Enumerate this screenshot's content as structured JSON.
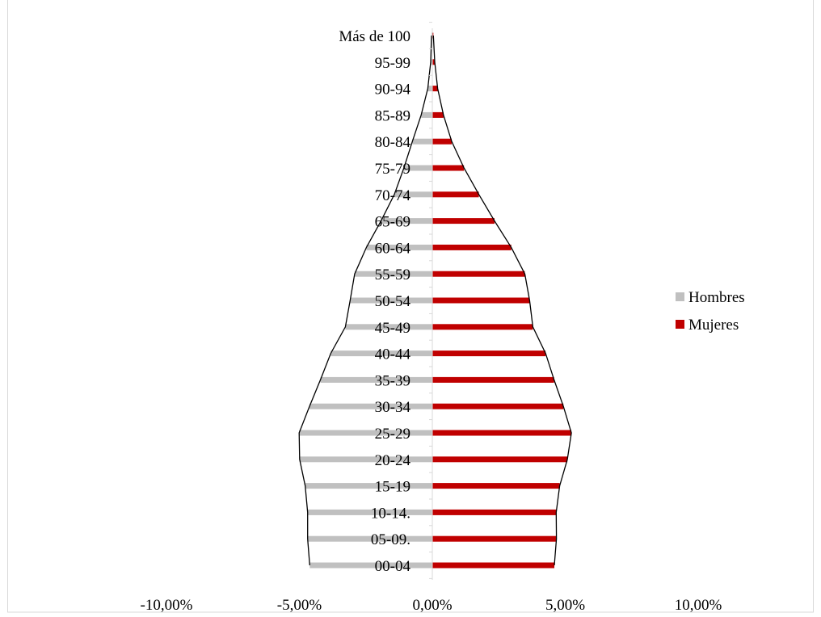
{
  "chart_data": {
    "type": "bar",
    "orientation": "horizontal",
    "title": "",
    "xlabel": "",
    "ylabel": "",
    "xlim": [
      -0.1,
      0.1
    ],
    "x_ticks": [
      -0.1,
      -0.05,
      0,
      0.05,
      0.1
    ],
    "x_tick_labels": [
      "-10,00%",
      "-5,00%",
      "0,00%",
      "5,00%",
      "10,00%"
    ],
    "grid": false,
    "legend_position": "right",
    "categories": [
      "Más de 100",
      "95-99",
      "90-94",
      "85-89",
      "80-84",
      "75-79",
      "70-74",
      "65-69",
      "60-64",
      "55-59",
      "50-54",
      "45-49",
      "40-44",
      "35-39",
      "30-34",
      "25-29",
      "20-24",
      "15-19",
      "10-14.",
      "05-09.",
      "00-04"
    ],
    "series": [
      {
        "name": "Hombres",
        "color": "#c0c0c0",
        "values": [
          -0.0003,
          -0.0006,
          -0.0017,
          -0.0042,
          -0.0075,
          -0.0107,
          -0.0143,
          -0.0193,
          -0.0248,
          -0.0292,
          -0.0309,
          -0.0327,
          -0.0382,
          -0.0421,
          -0.0462,
          -0.0501,
          -0.0499,
          -0.0478,
          -0.0469,
          -0.0469,
          -0.0461
        ]
      },
      {
        "name": "Mujeres",
        "color": "#c00000",
        "values": [
          0.0004,
          0.0009,
          0.002,
          0.0042,
          0.0073,
          0.0119,
          0.0175,
          0.0234,
          0.0297,
          0.0348,
          0.0366,
          0.0378,
          0.0426,
          0.0458,
          0.0493,
          0.0523,
          0.0508,
          0.0479,
          0.0466,
          0.0467,
          0.0459
        ]
      }
    ]
  }
}
